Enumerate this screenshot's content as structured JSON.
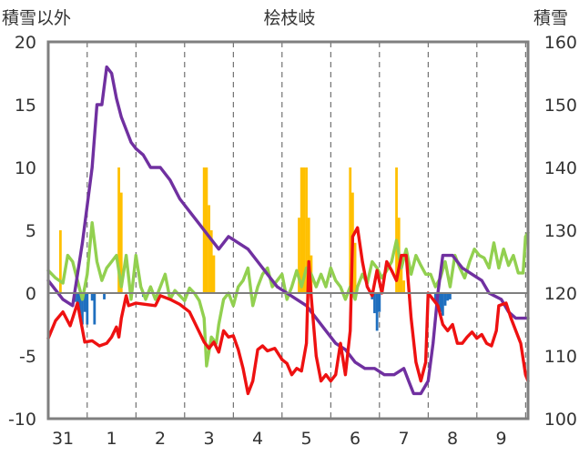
{
  "chart_data": {
    "type": "line",
    "title": "桧枝岐",
    "left_axis_label": "積雪以外",
    "right_axis_label": "積雪",
    "ylim_left": [
      -10,
      20
    ],
    "ylim_right": [
      100,
      160
    ],
    "y_ticks_left": [
      "20",
      "15",
      "10",
      "5",
      "0",
      "-5",
      "-10"
    ],
    "y_ticks_right": [
      "160",
      "150",
      "140",
      "130",
      "120",
      "110",
      "100"
    ],
    "x_tick_labels": [
      "31",
      "1",
      "2",
      "3",
      "4",
      "5",
      "6",
      "7",
      "8",
      "9"
    ],
    "x_range_days": [
      -1.3,
      8.55
    ],
    "grid": {
      "horizontal": false,
      "vertical_dashed": true
    },
    "colors": {
      "temperature": "#ee1111",
      "snow_depth": "#7030a0",
      "wind": "#92d050",
      "snowfall": "#ffc000",
      "precip_negative": "#1f6fbf",
      "frame": "#7f7f7f",
      "zero_line": "#7f7f7f"
    },
    "series": [
      {
        "key": "temperature",
        "axis": "left",
        "points": [
          [
            -1.3,
            -3.6
          ],
          [
            -1.15,
            -2.2
          ],
          [
            -1.0,
            -1.5
          ],
          [
            -0.85,
            -2.6
          ],
          [
            -0.7,
            -0.8
          ],
          [
            -0.55,
            -3.9
          ],
          [
            -0.4,
            -3.8
          ],
          [
            -0.25,
            -4.2
          ],
          [
            -0.1,
            -4.0
          ],
          [
            0.0,
            -3.5
          ],
          [
            0.1,
            -2.7
          ],
          [
            0.15,
            -3.5
          ],
          [
            0.2,
            -2.0
          ],
          [
            0.3,
            -0.2
          ],
          [
            0.35,
            -1.0
          ],
          [
            0.5,
            -0.8
          ],
          [
            0.7,
            -0.9
          ],
          [
            0.9,
            -1.0
          ],
          [
            1.0,
            -0.2
          ],
          [
            1.2,
            -0.5
          ],
          [
            1.4,
            -0.9
          ],
          [
            1.6,
            -1.5
          ],
          [
            1.75,
            -2.7
          ],
          [
            1.9,
            -3.9
          ],
          [
            2.0,
            -4.4
          ],
          [
            2.1,
            -3.9
          ],
          [
            2.2,
            -4.7
          ],
          [
            2.3,
            -3.0
          ],
          [
            2.4,
            -3.5
          ],
          [
            2.5,
            -3.4
          ],
          [
            2.6,
            -4.5
          ],
          [
            2.7,
            -6.0
          ],
          [
            2.8,
            -8.0
          ],
          [
            2.9,
            -7.0
          ],
          [
            3.0,
            -4.5
          ],
          [
            3.1,
            -4.2
          ],
          [
            3.2,
            -4.6
          ],
          [
            3.35,
            -4.4
          ],
          [
            3.5,
            -5.3
          ],
          [
            3.6,
            -5.6
          ],
          [
            3.7,
            -6.5
          ],
          [
            3.8,
            -6.0
          ],
          [
            3.9,
            -6.2
          ],
          [
            4.0,
            -4.0
          ],
          [
            4.05,
            2.5
          ],
          [
            4.1,
            -0.3
          ],
          [
            4.2,
            -5.0
          ],
          [
            4.3,
            -7.0
          ],
          [
            4.4,
            -6.5
          ],
          [
            4.5,
            -7.0
          ],
          [
            4.6,
            -6.5
          ],
          [
            4.7,
            -4.0
          ],
          [
            4.8,
            -6.5
          ],
          [
            4.9,
            -3.0
          ],
          [
            4.95,
            4.5
          ],
          [
            5.05,
            5.2
          ],
          [
            5.15,
            2.5
          ],
          [
            5.25,
            0.5
          ],
          [
            5.35,
            -0.2
          ],
          [
            5.45,
            1.8
          ],
          [
            5.55,
            0.0
          ],
          [
            5.65,
            2.5
          ],
          [
            5.75,
            1.8
          ],
          [
            5.85,
            1.0
          ],
          [
            5.95,
            3.0
          ],
          [
            6.05,
            3.0
          ],
          [
            6.15,
            -2.0
          ],
          [
            6.25,
            -5.5
          ],
          [
            6.35,
            -7.0
          ],
          [
            6.45,
            -5.5
          ],
          [
            6.5,
            0.0
          ],
          [
            6.6,
            -0.5
          ],
          [
            6.7,
            -1.0
          ],
          [
            6.8,
            -2.5
          ],
          [
            6.9,
            -3.0
          ],
          [
            7.0,
            -2.5
          ],
          [
            7.1,
            -4.0
          ],
          [
            7.2,
            -4.0
          ],
          [
            7.3,
            -3.5
          ],
          [
            7.4,
            -3.1
          ],
          [
            7.5,
            -3.6
          ],
          [
            7.6,
            -3.3
          ],
          [
            7.7,
            -4.0
          ],
          [
            7.8,
            -4.2
          ],
          [
            7.9,
            -3.0
          ],
          [
            7.95,
            -1.0
          ],
          [
            8.1,
            -0.8
          ],
          [
            8.2,
            -2.0
          ],
          [
            8.3,
            -3.0
          ],
          [
            8.4,
            -4.0
          ],
          [
            8.5,
            -6.5
          ],
          [
            8.55,
            -7.0
          ]
        ]
      },
      {
        "key": "snow_depth",
        "axis": "right",
        "points": [
          [
            -1.3,
            122
          ],
          [
            -1.0,
            119
          ],
          [
            -0.8,
            118
          ],
          [
            -0.6,
            128
          ],
          [
            -0.4,
            140
          ],
          [
            -0.3,
            150
          ],
          [
            -0.2,
            150
          ],
          [
            -0.1,
            156
          ],
          [
            0.0,
            155
          ],
          [
            0.1,
            151
          ],
          [
            0.2,
            148
          ],
          [
            0.4,
            144
          ],
          [
            0.5,
            143
          ],
          [
            0.65,
            142
          ],
          [
            0.8,
            140
          ],
          [
            1.0,
            140
          ],
          [
            1.2,
            138
          ],
          [
            1.4,
            135
          ],
          [
            1.6,
            133
          ],
          [
            1.8,
            131
          ],
          [
            2.0,
            129
          ],
          [
            2.2,
            127
          ],
          [
            2.4,
            129
          ],
          [
            2.6,
            128
          ],
          [
            2.8,
            127
          ],
          [
            3.0,
            125
          ],
          [
            3.2,
            123
          ],
          [
            3.4,
            121
          ],
          [
            3.6,
            120
          ],
          [
            3.8,
            119
          ],
          [
            4.0,
            118
          ],
          [
            4.1,
            117
          ],
          [
            4.2,
            116
          ],
          [
            4.4,
            114
          ],
          [
            4.6,
            112
          ],
          [
            4.8,
            111
          ],
          [
            5.0,
            109
          ],
          [
            5.2,
            108
          ],
          [
            5.4,
            108
          ],
          [
            5.6,
            107
          ],
          [
            5.8,
            107
          ],
          [
            6.0,
            108
          ],
          [
            6.1,
            106
          ],
          [
            6.2,
            104
          ],
          [
            6.35,
            104
          ],
          [
            6.5,
            106
          ],
          [
            6.6,
            112
          ],
          [
            6.7,
            120
          ],
          [
            6.8,
            126
          ],
          [
            7.0,
            126
          ],
          [
            7.1,
            125
          ],
          [
            7.2,
            124
          ],
          [
            7.4,
            123
          ],
          [
            7.6,
            122
          ],
          [
            7.75,
            120
          ],
          [
            8.0,
            119
          ],
          [
            8.15,
            117
          ],
          [
            8.3,
            116
          ],
          [
            8.55,
            116
          ]
        ]
      },
      {
        "key": "wind",
        "axis": "left",
        "points": [
          [
            -1.3,
            1.8
          ],
          [
            -1.15,
            1.2
          ],
          [
            -1.0,
            0.8
          ],
          [
            -0.9,
            3.0
          ],
          [
            -0.8,
            2.5
          ],
          [
            -0.7,
            1.0
          ],
          [
            -0.6,
            -0.5
          ],
          [
            -0.5,
            1.5
          ],
          [
            -0.4,
            5.6
          ],
          [
            -0.3,
            2.5
          ],
          [
            -0.2,
            1.0
          ],
          [
            -0.1,
            2.0
          ],
          [
            0.0,
            2.5
          ],
          [
            0.1,
            3.0
          ],
          [
            0.2,
            0.5
          ],
          [
            0.3,
            3.0
          ],
          [
            0.4,
            -0.5
          ],
          [
            0.5,
            3.0
          ],
          [
            0.6,
            0.5
          ],
          [
            0.7,
            -0.5
          ],
          [
            0.8,
            0.5
          ],
          [
            0.9,
            -0.5
          ],
          [
            1.0,
            0.5
          ],
          [
            1.1,
            1.5
          ],
          [
            1.2,
            -0.5
          ],
          [
            1.3,
            0.2
          ],
          [
            1.4,
            -0.2
          ],
          [
            1.5,
            -0.6
          ],
          [
            1.6,
            0.4
          ],
          [
            1.7,
            0.0
          ],
          [
            1.8,
            -0.6
          ],
          [
            1.9,
            -2.0
          ],
          [
            1.95,
            -5.8
          ],
          [
            2.05,
            -3.5
          ],
          [
            2.15,
            -4.0
          ],
          [
            2.2,
            -2.5
          ],
          [
            2.3,
            -0.5
          ],
          [
            2.4,
            0.0
          ],
          [
            2.5,
            -1.0
          ],
          [
            2.6,
            0.5
          ],
          [
            2.7,
            1.0
          ],
          [
            2.8,
            2.0
          ],
          [
            2.9,
            -1.0
          ],
          [
            3.0,
            0.5
          ],
          [
            3.1,
            1.5
          ],
          [
            3.2,
            2.0
          ],
          [
            3.3,
            0.5
          ],
          [
            3.4,
            1.0
          ],
          [
            3.5,
            1.5
          ],
          [
            3.6,
            -0.5
          ],
          [
            3.7,
            0.5
          ],
          [
            3.8,
            1.8
          ],
          [
            3.9,
            0.5
          ],
          [
            4.0,
            2.0
          ],
          [
            4.1,
            1.5
          ],
          [
            4.2,
            0.5
          ],
          [
            4.3,
            1.5
          ],
          [
            4.4,
            0.5
          ],
          [
            4.5,
            2.0
          ],
          [
            4.6,
            1.0
          ],
          [
            4.7,
            0.5
          ],
          [
            4.8,
            -0.5
          ],
          [
            4.9,
            0.5
          ],
          [
            5.0,
            -0.5
          ],
          [
            5.05,
            0.5
          ],
          [
            5.15,
            1.5
          ],
          [
            5.25,
            0.8
          ],
          [
            5.35,
            2.5
          ],
          [
            5.45,
            2.0
          ],
          [
            5.55,
            1.2
          ],
          [
            5.65,
            1.8
          ],
          [
            5.75,
            2.5
          ],
          [
            5.85,
            4.2
          ],
          [
            5.95,
            2.0
          ],
          [
            6.05,
            3.5
          ],
          [
            6.15,
            1.5
          ],
          [
            6.25,
            3.0
          ],
          [
            6.35,
            2.2
          ],
          [
            6.45,
            1.5
          ],
          [
            6.55,
            1.5
          ],
          [
            6.65,
            0.5
          ],
          [
            6.75,
            1.2
          ],
          [
            6.85,
            2.5
          ],
          [
            6.95,
            0.5
          ],
          [
            7.05,
            3.0
          ],
          [
            7.15,
            2.0
          ],
          [
            7.25,
            1.2
          ],
          [
            7.35,
            2.5
          ],
          [
            7.45,
            3.5
          ],
          [
            7.55,
            3.0
          ],
          [
            7.65,
            2.8
          ],
          [
            7.75,
            2.0
          ],
          [
            7.85,
            4.0
          ],
          [
            7.95,
            2.0
          ],
          [
            8.05,
            3.5
          ],
          [
            8.15,
            2.2
          ],
          [
            8.25,
            3.0
          ],
          [
            8.35,
            1.6
          ],
          [
            8.45,
            1.6
          ],
          [
            8.5,
            4.5
          ],
          [
            8.55,
            4.8
          ]
        ]
      }
    ],
    "bars": {
      "snowfall": [
        [
          -1.05,
          5.0
        ],
        [
          0.15,
          10.0
        ],
        [
          0.2,
          8.0
        ],
        [
          1.9,
          10.0
        ],
        [
          1.95,
          10.0
        ],
        [
          2.0,
          7.0
        ],
        [
          2.05,
          5.0
        ],
        [
          2.1,
          3.0
        ],
        [
          3.85,
          6.0
        ],
        [
          3.9,
          10.0
        ],
        [
          3.95,
          10.0
        ],
        [
          4.0,
          10.0
        ],
        [
          4.05,
          6.0
        ],
        [
          4.1,
          3.0
        ],
        [
          4.9,
          10.0
        ],
        [
          4.95,
          8.0
        ],
        [
          5.0,
          4.0
        ],
        [
          5.85,
          10.0
        ],
        [
          5.9,
          6.0
        ],
        [
          5.95,
          3.0
        ],
        [
          6.0,
          1.0
        ]
      ],
      "precip_negative": [
        [
          -0.75,
          -0.7
        ],
        [
          -0.7,
          -1.0
        ],
        [
          -0.65,
          -1.6
        ],
        [
          -0.6,
          -2.5
        ],
        [
          -0.55,
          -1.5
        ],
        [
          -0.5,
          -2.5
        ],
        [
          -0.4,
          -0.6
        ],
        [
          -0.35,
          -2.5
        ],
        [
          -0.15,
          -0.5
        ],
        [
          0.65,
          -0.3
        ],
        [
          5.35,
          -0.5
        ],
        [
          5.4,
          -1.6
        ],
        [
          5.45,
          -3.0
        ],
        [
          5.5,
          -1.5
        ],
        [
          6.65,
          -0.8
        ],
        [
          6.7,
          -1.2
        ],
        [
          6.75,
          -1.5
        ],
        [
          6.8,
          -1.8
        ],
        [
          6.85,
          -1.0
        ],
        [
          6.9,
          -0.6
        ],
        [
          6.95,
          -0.5
        ]
      ]
    }
  }
}
